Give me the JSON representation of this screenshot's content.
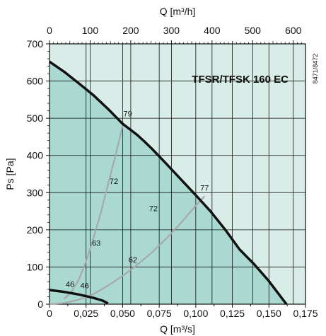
{
  "chart_data": {
    "type": "line",
    "title": "TFSR/TFSK 160 EC",
    "doc_number": "8471/8472",
    "xlabel": "Q [m³/s]",
    "x2label": "Q [m³/h]",
    "ylabel": "Ps [Pa]",
    "xlim": [
      0,
      0.175
    ],
    "x2lim": [
      0,
      630
    ],
    "ylim": [
      0,
      700
    ],
    "x_ticks": [
      0,
      0.025,
      0.05,
      0.075,
      0.1,
      0.125,
      0.15,
      0.175
    ],
    "x_tick_labels": [
      "0",
      "0,025",
      "0,050",
      "0,075",
      "0,100",
      "0,125",
      "0,150",
      "0,175"
    ],
    "x2_ticks": [
      0,
      100,
      200,
      300,
      400,
      500,
      600
    ],
    "x2_tick_labels": [
      "0",
      "100",
      "200",
      "300",
      "400",
      "500",
      "600"
    ],
    "y_ticks": [
      0,
      100,
      200,
      300,
      400,
      500,
      600,
      700
    ],
    "y_tick_labels": [
      "0",
      "100",
      "200",
      "300",
      "400",
      "500",
      "600",
      "700"
    ],
    "grid": true,
    "colors": {
      "background": "#d8ece8",
      "operating_area": "#a9d9d1",
      "max_curve": "#111111",
      "min_curve": "#111111",
      "system_curve": "#a8a8a8",
      "grid": "#111111"
    },
    "series": [
      {
        "role": "max_curve",
        "x": [
          0,
          0.01,
          0.02,
          0.03,
          0.04,
          0.05,
          0.055,
          0.06,
          0.065,
          0.07,
          0.08,
          0.09,
          0.1,
          0.11,
          0.12,
          0.13,
          0.14,
          0.15,
          0.16,
          0.162
        ],
        "y": [
          652,
          625,
          594,
          562,
          525,
          485,
          470,
          455,
          437,
          418,
          377,
          335,
          293,
          250,
          201,
          147,
          107,
          62,
          10,
          0
        ]
      },
      {
        "role": "min_curve",
        "x": [
          0,
          0.01,
          0.02,
          0.03,
          0.036,
          0.04
        ],
        "y": [
          38,
          33,
          26,
          17,
          10,
          2
        ]
      },
      {
        "role": "system_curve_1",
        "x": [
          0.01,
          0.015,
          0.02,
          0.025,
          0.03,
          0.035,
          0.04,
          0.045,
          0.05
        ],
        "y": [
          14,
          33,
          66,
          115,
          177,
          245,
          322,
          398,
          480
        ]
      },
      {
        "role": "system_curve_2",
        "x": [
          0,
          0.01,
          0.02,
          0.03,
          0.04,
          0.05,
          0.06,
          0.07,
          0.08,
          0.09,
          0.1,
          0.106
        ],
        "y": [
          0,
          3,
          12,
          27,
          50,
          76,
          106,
          139,
          177,
          219,
          265,
          290
        ]
      }
    ],
    "annotations": [
      {
        "text": "79",
        "x": 0.0535,
        "y": 505
      },
      {
        "text": "77",
        "x": 0.106,
        "y": 305
      },
      {
        "text": "72",
        "x": 0.044,
        "y": 323
      },
      {
        "text": "72",
        "x": 0.071,
        "y": 250
      },
      {
        "text": "63",
        "x": 0.032,
        "y": 157
      },
      {
        "text": "62",
        "x": 0.057,
        "y": 112
      },
      {
        "text": "46",
        "x": 0.014,
        "y": 47
      },
      {
        "text": "46",
        "x": 0.024,
        "y": 43
      }
    ]
  }
}
